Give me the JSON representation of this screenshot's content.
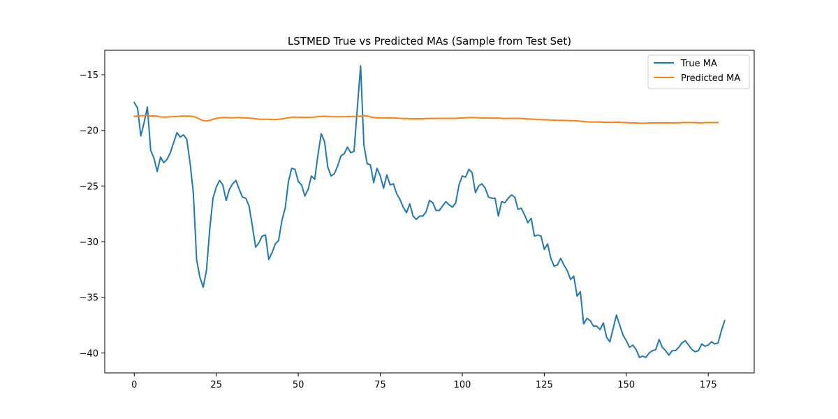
{
  "chart_data": {
    "type": "line",
    "title": "LSTMED True vs Predicted MAs (Sample from Test Set)",
    "xlabel": "",
    "ylabel": "",
    "xlim": [
      -9,
      189
    ],
    "ylim": [
      -41.8,
      -12.8
    ],
    "xticks": [
      0,
      25,
      50,
      75,
      100,
      125,
      150,
      175
    ],
    "yticks": [
      -15,
      -20,
      -25,
      -30,
      -35,
      -40
    ],
    "xtick_labels": [
      "0",
      "25",
      "50",
      "75",
      "100",
      "125",
      "150",
      "175"
    ],
    "ytick_labels": [
      "−15",
      "−20",
      "−25",
      "−30",
      "−35",
      "−40"
    ],
    "grid": false,
    "legend_position": "top-right",
    "series": [
      {
        "name": "True MA",
        "color": "#1f77b4",
        "values": [
          -17.5,
          -18.0,
          -20.5,
          -19.3,
          -17.9,
          -21.8,
          -22.5,
          -23.7,
          -22.4,
          -22.9,
          -22.6,
          -22.0,
          -21.1,
          -20.2,
          -20.6,
          -20.4,
          -20.8,
          -22.9,
          -25.6,
          -31.6,
          -33.2,
          -34.1,
          -32.6,
          -28.9,
          -26.1,
          -25.1,
          -24.5,
          -24.9,
          -26.3,
          -25.3,
          -24.8,
          -24.5,
          -25.3,
          -26.0,
          -26.1,
          -26.8,
          -28.6,
          -30.5,
          -30.1,
          -29.5,
          -29.4,
          -31.6,
          -31.0,
          -30.2,
          -29.9,
          -28.1,
          -27.0,
          -24.6,
          -23.4,
          -23.5,
          -24.6,
          -24.9,
          -25.9,
          -25.3,
          -24.1,
          -24.4,
          -22.2,
          -20.3,
          -21.0,
          -23.3,
          -24.1,
          -23.9,
          -23.2,
          -22.3,
          -22.1,
          -21.5,
          -22.0,
          -21.9,
          -18.0,
          -14.2,
          -21.3,
          -23.0,
          -23.1,
          -24.7,
          -23.4,
          -24.1,
          -25.2,
          -24.0,
          -24.9,
          -24.8,
          -25.7,
          -26.2,
          -26.9,
          -27.4,
          -26.6,
          -27.7,
          -28.0,
          -27.7,
          -27.7,
          -27.3,
          -26.3,
          -26.5,
          -27.2,
          -27.2,
          -26.8,
          -26.4,
          -26.7,
          -26.9,
          -26.5,
          -24.9,
          -24.1,
          -24.2,
          -23.5,
          -23.8,
          -25.6,
          -25.0,
          -24.8,
          -25.2,
          -26.0,
          -26.1,
          -26.1,
          -27.7,
          -26.4,
          -26.5,
          -26.1,
          -25.8,
          -26.0,
          -27.1,
          -27.0,
          -27.6,
          -28.3,
          -27.9,
          -29.5,
          -29.4,
          -29.5,
          -30.7,
          -30.2,
          -31.5,
          -32.2,
          -32.1,
          -31.5,
          -32.1,
          -32.6,
          -33.4,
          -33.1,
          -34.9,
          -34.5,
          -37.4,
          -36.9,
          -37.1,
          -37.6,
          -37.6,
          -37.9,
          -37.3,
          -38.6,
          -39.0,
          -37.8,
          -36.6,
          -37.5,
          -38.4,
          -38.9,
          -39.5,
          -39.3,
          -39.7,
          -40.4,
          -40.3,
          -40.4,
          -40.0,
          -39.8,
          -39.7,
          -38.8,
          -39.5,
          -39.8,
          -40.2,
          -39.8,
          -39.8,
          -39.5,
          -39.1,
          -38.9,
          -39.3,
          -39.7,
          -39.9,
          -39.8,
          -39.2,
          -39.4,
          -39.3,
          -39.0,
          -39.2,
          -39.1,
          -38.0,
          -37.1
        ]
      },
      {
        "name": "Predicted MA",
        "color": "#ff7f0e",
        "values": [
          -18.75,
          -18.7,
          -18.68,
          -18.68,
          -18.67,
          -18.7,
          -18.7,
          -18.72,
          -18.8,
          -18.8,
          -18.8,
          -18.78,
          -18.77,
          -18.75,
          -18.72,
          -18.72,
          -18.72,
          -18.72,
          -18.75,
          -18.85,
          -19.0,
          -19.12,
          -19.15,
          -19.1,
          -19.0,
          -18.92,
          -18.87,
          -18.85,
          -18.85,
          -18.87,
          -18.87,
          -18.85,
          -18.85,
          -18.87,
          -18.88,
          -18.9,
          -18.92,
          -18.95,
          -19.0,
          -19.0,
          -19.0,
          -19.0,
          -19.02,
          -19.03,
          -19.0,
          -18.97,
          -18.92,
          -18.87,
          -18.82,
          -18.8,
          -18.82,
          -18.83,
          -18.83,
          -18.83,
          -18.82,
          -18.8,
          -18.77,
          -18.75,
          -18.73,
          -18.75,
          -18.77,
          -18.78,
          -18.78,
          -18.78,
          -18.77,
          -18.77,
          -18.75,
          -18.75,
          -18.73,
          -18.72,
          -18.68,
          -18.7,
          -18.8,
          -18.85,
          -18.87,
          -18.87,
          -18.88,
          -18.88,
          -18.88,
          -18.88,
          -18.9,
          -18.92,
          -18.93,
          -18.93,
          -18.95,
          -18.95,
          -18.95,
          -18.95,
          -18.95,
          -18.93,
          -18.93,
          -18.92,
          -18.92,
          -18.92,
          -18.92,
          -18.92,
          -18.92,
          -18.92,
          -18.92,
          -18.9,
          -18.88,
          -18.87,
          -18.85,
          -18.85,
          -18.85,
          -18.87,
          -18.88,
          -18.88,
          -18.88,
          -18.9,
          -18.9,
          -18.9,
          -18.92,
          -18.93,
          -18.93,
          -18.92,
          -18.92,
          -18.92,
          -18.93,
          -18.95,
          -18.97,
          -18.98,
          -19.0,
          -19.02,
          -19.03,
          -19.05,
          -19.05,
          -19.07,
          -19.08,
          -19.1,
          -19.1,
          -19.1,
          -19.12,
          -19.13,
          -19.13,
          -19.15,
          -19.17,
          -19.2,
          -19.23,
          -19.25,
          -19.25,
          -19.25,
          -19.25,
          -19.27,
          -19.27,
          -19.28,
          -19.28,
          -19.27,
          -19.27,
          -19.3,
          -19.3,
          -19.32,
          -19.33,
          -19.33,
          -19.35,
          -19.35,
          -19.35,
          -19.33,
          -19.33,
          -19.32,
          -19.32,
          -19.32,
          -19.32,
          -19.32,
          -19.33,
          -19.32,
          -19.32,
          -19.3,
          -19.3,
          -19.3,
          -19.3,
          -19.3,
          -19.32,
          -19.32,
          -19.3,
          -19.3,
          -19.3,
          -19.3,
          -19.3
        ]
      }
    ]
  }
}
